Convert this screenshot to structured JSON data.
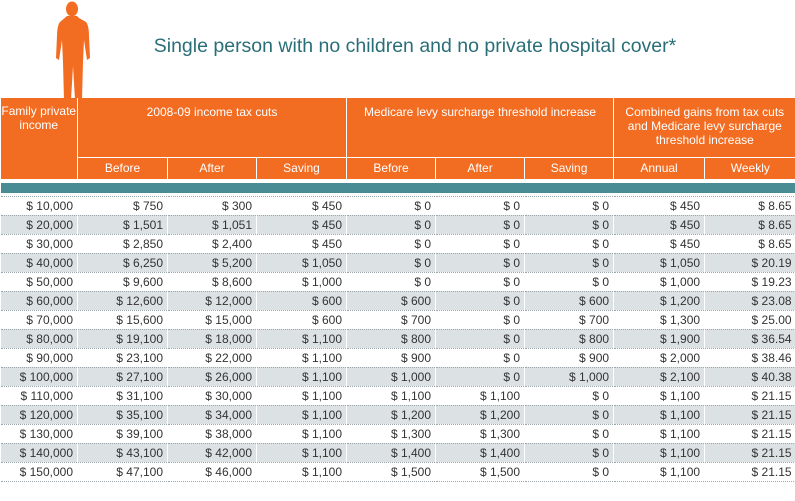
{
  "title": "Single person with no children and no private hospital cover*",
  "icon": "person-silhouette-icon",
  "colors": {
    "header": "#f26c22",
    "title": "#2a6f78",
    "band": "#4a8c94",
    "alt_row": "#dce2e4"
  },
  "header": {
    "income": "Family private income",
    "group_tax": "2008-09 income tax cuts",
    "group_medicare": "Medicare levy surcharge threshold increase",
    "group_combined": "Combined gains from tax cuts and Medicare levy surcharge threshold increase",
    "sub": [
      "Before",
      "After",
      "Saving",
      "Before",
      "After",
      "Saving",
      "Annual",
      "Weekly"
    ]
  },
  "rows": [
    [
      "$ 10,000",
      "$ 750",
      "$ 300",
      "$ 450",
      "$ 0",
      "$ 0",
      "$ 0",
      "$ 450",
      "$ 8.65"
    ],
    [
      "$ 20,000",
      "$ 1,501",
      "$ 1,051",
      "$ 450",
      "$ 0",
      "$ 0",
      "$ 0",
      "$ 450",
      "$ 8.65"
    ],
    [
      "$ 30,000",
      "$ 2,850",
      "$ 2,400",
      "$ 450",
      "$ 0",
      "$ 0",
      "$ 0",
      "$ 450",
      "$ 8.65"
    ],
    [
      "$ 40,000",
      "$ 6,250",
      "$ 5,200",
      "$ 1,050",
      "$ 0",
      "$ 0",
      "$ 0",
      "$ 1,050",
      "$ 20.19"
    ],
    [
      "$ 50,000",
      "$ 9,600",
      "$ 8,600",
      "$ 1,000",
      "$ 0",
      "$ 0",
      "$ 0",
      "$ 1,000",
      "$ 19.23"
    ],
    [
      "$ 60,000",
      "$ 12,600",
      "$ 12,000",
      "$ 600",
      "$ 600",
      "$ 0",
      "$ 600",
      "$ 1,200",
      "$ 23.08"
    ],
    [
      "$ 70,000",
      "$ 15,600",
      "$ 15,000",
      "$ 600",
      "$ 700",
      "$ 0",
      "$ 700",
      "$ 1,300",
      "$ 25.00"
    ],
    [
      "$ 80,000",
      "$ 19,100",
      "$ 18,000",
      "$ 1,100",
      "$ 800",
      "$ 0",
      "$ 800",
      "$ 1,900",
      "$ 36.54"
    ],
    [
      "$ 90,000",
      "$ 23,100",
      "$ 22,000",
      "$ 1,100",
      "$ 900",
      "$ 0",
      "$ 900",
      "$ 2,000",
      "$ 38.46"
    ],
    [
      "$ 100,000",
      "$ 27,100",
      "$ 26,000",
      "$ 1,100",
      "$ 1,000",
      "$ 0",
      "$ 1,000",
      "$ 2,100",
      "$ 40.38"
    ],
    [
      "$ 110,000",
      "$ 31,100",
      "$ 30,000",
      "$ 1,100",
      "$ 1,100",
      "$ 1,100",
      "$ 0",
      "$ 1,100",
      "$ 21.15"
    ],
    [
      "$ 120,000",
      "$ 35,100",
      "$ 34,000",
      "$ 1,100",
      "$ 1,200",
      "$ 1,200",
      "$ 0",
      "$ 1,100",
      "$ 21.15"
    ],
    [
      "$ 130,000",
      "$ 39,100",
      "$ 38,000",
      "$ 1,100",
      "$ 1,300",
      "$ 1,300",
      "$ 0",
      "$ 1,100",
      "$ 21.15"
    ],
    [
      "$ 140,000",
      "$ 43,100",
      "$ 42,000",
      "$ 1,100",
      "$ 1,400",
      "$ 1,400",
      "$ 0",
      "$ 1,100",
      "$ 21.15"
    ],
    [
      "$ 150,000",
      "$ 47,100",
      "$ 46,000",
      "$ 1,100",
      "$ 1,500",
      "$ 1,500",
      "$ 0",
      "$ 1,100",
      "$ 21.15"
    ]
  ]
}
